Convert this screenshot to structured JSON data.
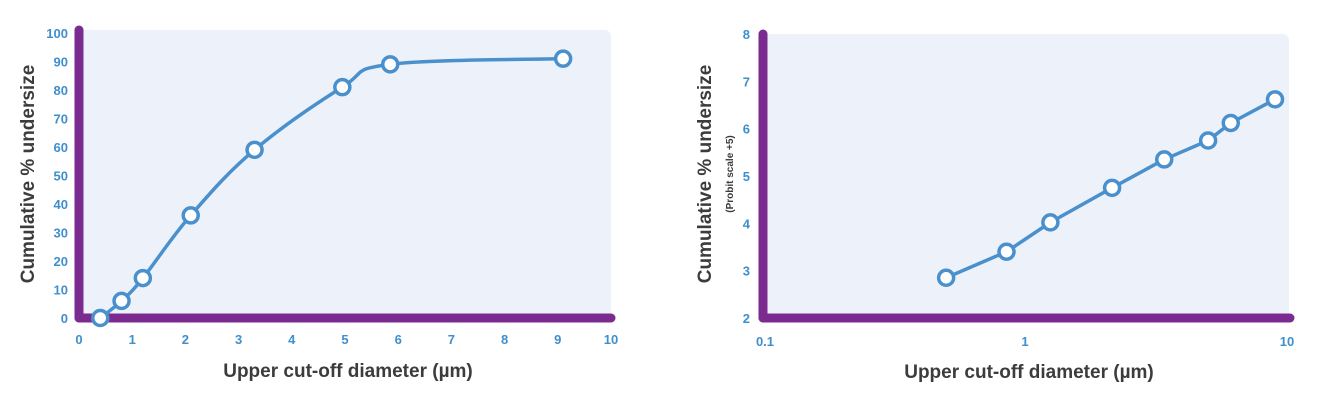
{
  "colors": {
    "axis": "#7b2a8f",
    "series": "#4a90cc",
    "tick": "#3f8fcd",
    "plot_bg": "#edf2fa",
    "title": "#3c3c3c"
  },
  "chart_data": [
    {
      "type": "line",
      "xlabel": "Upper cut-off diameter (µm)",
      "ylabel": "Cumulative % undersize",
      "xlim": [
        0,
        10
      ],
      "ylim": [
        0,
        100
      ],
      "x_ticks": [
        0,
        1,
        2,
        3,
        4,
        5,
        6,
        7,
        8,
        9,
        10
      ],
      "y_ticks": [
        0,
        10,
        20,
        30,
        40,
        50,
        60,
        70,
        80,
        90,
        100
      ],
      "smooth": true,
      "series": [
        {
          "x": [
            0.4,
            0.8,
            1.2,
            2.1,
            3.3,
            4.95,
            5.85,
            9.1
          ],
          "y": [
            0,
            6,
            14,
            36,
            59,
            81,
            89,
            91
          ]
        }
      ]
    },
    {
      "type": "line",
      "xlabel": "Upper cut-off diameter (µm)",
      "ylabel": "Cumulative % undersize",
      "ylabel_sub": "(Probit scale +5)",
      "x_scale": "log",
      "xlim": [
        0.1,
        10
      ],
      "ylim": [
        2,
        8
      ],
      "x_ticks": [
        0.1,
        1,
        10
      ],
      "x_tick_labels": [
        "0.1",
        "1",
        "10"
      ],
      "y_ticks": [
        2,
        3,
        4,
        5,
        6,
        7,
        8
      ],
      "smooth": false,
      "series": [
        {
          "x": [
            0.5,
            0.85,
            1.25,
            2.15,
            3.4,
            5.0,
            6.1,
            9.0
          ],
          "y": [
            2.85,
            3.4,
            4.02,
            4.75,
            5.35,
            5.75,
            6.12,
            6.62
          ]
        }
      ]
    }
  ]
}
